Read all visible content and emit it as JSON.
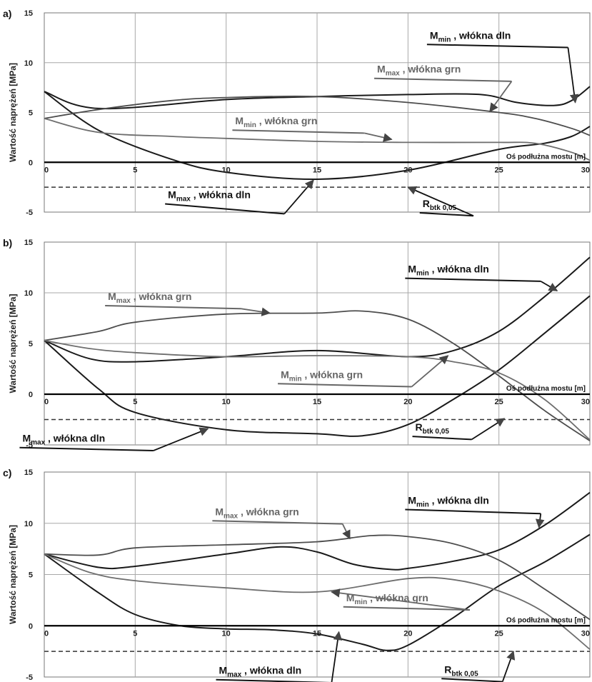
{
  "chart_data": [
    {
      "type": "line",
      "panel_label": "a)",
      "ylabel": "Wartość naprężeń [MPa]",
      "axis_note": "Oś podłużna mostu [m]",
      "xlim": [
        0,
        30
      ],
      "ylim": [
        -5,
        15
      ],
      "xticks": [
        "0",
        "5",
        "10",
        "15",
        "20",
        "25",
        "30"
      ],
      "yticks": [
        "-5",
        "0",
        "5",
        "10",
        "15"
      ],
      "series": [
        {
          "key": "mmax_dln",
          "color": "#1a1a1a",
          "x": [
            0,
            3,
            7,
            10,
            15,
            20,
            25,
            27.5,
            29,
            30
          ],
          "y": [
            7.1,
            3.2,
            0.3,
            -1.0,
            -1.7,
            -0.8,
            1.3,
            1.9,
            2.6,
            3.6
          ]
        },
        {
          "key": "mmin_dln",
          "color": "#1a1a1a",
          "x": [
            0,
            3,
            10,
            15,
            20,
            24,
            26,
            28,
            29,
            30
          ],
          "y": [
            7.1,
            5.4,
            6.3,
            6.6,
            6.8,
            6.8,
            6.0,
            5.7,
            6.2,
            7.6
          ]
        },
        {
          "key": "mmax_grn",
          "color": "#4d4d4d",
          "x": [
            0,
            3,
            7,
            10,
            15,
            20,
            25,
            27,
            29,
            30
          ],
          "y": [
            4.4,
            5.3,
            6.2,
            6.5,
            6.6,
            6.0,
            5.0,
            4.4,
            3.4,
            2.7
          ]
        },
        {
          "key": "mmin_grn",
          "color": "#6e6e6e",
          "x": [
            0,
            3,
            7,
            10,
            15,
            20,
            25,
            27,
            29,
            30
          ],
          "y": [
            4.4,
            3.0,
            2.6,
            2.4,
            2.1,
            2.0,
            2.0,
            1.9,
            1.0,
            0.2
          ]
        },
        {
          "key": "rbtk",
          "color": "#333333",
          "dashed": true,
          "x": [
            0,
            30
          ],
          "y": [
            -2.5,
            -2.5
          ]
        },
        {
          "key": "axis",
          "color": "#000000",
          "x": [
            0,
            30
          ],
          "y": [
            0,
            0
          ]
        }
      ],
      "annotations": [
        {
          "main": "M",
          "sub": "min",
          "rest": " , włókna dln",
          "color": "#111",
          "text_at": [
            21.2,
            12.4
          ],
          "line_end": [
            28.8,
            12.1
          ],
          "arrow_to": [
            29.2,
            6.0
          ]
        },
        {
          "main": "M",
          "sub": "max",
          "rest": " , włókna grn",
          "color": "#666",
          "text_at": [
            18.3,
            9.0
          ],
          "line_end": [
            25.7,
            8.7
          ],
          "arrow_to": [
            24.5,
            5.1
          ]
        },
        {
          "main": "M",
          "sub": "min",
          "rest": " , włókna grn",
          "color": "#666",
          "text_at": [
            10.5,
            3.8
          ],
          "line_end": [
            17.6,
            3.5
          ],
          "arrow_to": [
            19.1,
            2.3
          ]
        },
        {
          "main": "M",
          "sub": "max",
          "rest": " , włókna dln",
          "color": "#111",
          "text_at": [
            6.8,
            -3.6
          ],
          "line_end": [
            13.2,
            -4.6
          ],
          "arrow_to": [
            14.8,
            -1.8
          ]
        },
        {
          "main": "R",
          "sub": "btk 0,05",
          "rest": "",
          "color": "#111",
          "text_at": [
            20.8,
            -4.5
          ],
          "line_end": [
            23.6,
            -4.8
          ],
          "arrow_to": [
            20.0,
            -2.5
          ]
        }
      ]
    },
    {
      "type": "line",
      "panel_label": "b)",
      "ylabel": "Wartość naprężeń [MPa]",
      "axis_note": "Oś podłużna mostu [m]",
      "xlim": [
        0,
        30
      ],
      "ylim": [
        -5,
        15
      ],
      "xticks": [
        "0",
        "5",
        "10",
        "15",
        "20",
        "25",
        "30"
      ],
      "yticks": [
        "-5",
        "0",
        "5",
        "10",
        "15"
      ],
      "series": [
        {
          "key": "mmax_dln",
          "color": "#1a1a1a",
          "x": [
            0,
            3,
            5,
            10,
            15,
            17.5,
            20,
            22.5,
            25,
            27.5,
            30
          ],
          "y": [
            5.3,
            0.5,
            -1.8,
            -3.5,
            -3.9,
            -4.1,
            -3.0,
            -0.5,
            2.4,
            6.0,
            9.7
          ]
        },
        {
          "key": "mmin_dln",
          "color": "#1a1a1a",
          "x": [
            0,
            2.5,
            5,
            10,
            15,
            20,
            22.5,
            25,
            27.5,
            30
          ],
          "y": [
            5.3,
            3.5,
            3.2,
            3.7,
            4.3,
            3.7,
            4.3,
            6.2,
            9.6,
            13.5
          ]
        },
        {
          "key": "mmax_grn",
          "color": "#4d4d4d",
          "x": [
            0,
            3,
            5,
            10,
            15,
            17.5,
            20,
            22.5,
            25,
            27.5,
            30
          ],
          "y": [
            5.3,
            6.2,
            7.1,
            7.9,
            8.0,
            8.2,
            7.4,
            5.0,
            1.8,
            -1.6,
            -4.6
          ]
        },
        {
          "key": "mmin_grn",
          "color": "#6e6e6e",
          "x": [
            0,
            2.5,
            5,
            10,
            15,
            20,
            22.5,
            25,
            27.5,
            30
          ],
          "y": [
            5.3,
            4.5,
            4.1,
            3.7,
            3.8,
            3.7,
            3.2,
            2.1,
            -0.5,
            -4.5
          ]
        },
        {
          "key": "rbtk",
          "color": "#333333",
          "dashed": true,
          "x": [
            0,
            30
          ],
          "y": [
            -2.5,
            -2.5
          ]
        },
        {
          "key": "axis",
          "color": "#000000",
          "x": [
            0,
            30
          ],
          "y": [
            0,
            0
          ]
        }
      ],
      "annotations": [
        {
          "main": "M",
          "sub": "min",
          "rest": " , włókna dln",
          "color": "#111",
          "text_at": [
            20.0,
            12.0
          ],
          "line_end": [
            27.3,
            11.7
          ],
          "arrow_to": [
            28.2,
            10.2
          ]
        },
        {
          "main": "M",
          "sub": "max",
          "rest": " , włókna grn",
          "color": "#666",
          "text_at": [
            3.5,
            9.3
          ],
          "line_end": [
            10.8,
            9.0
          ],
          "arrow_to": [
            12.4,
            8.0
          ]
        },
        {
          "main": "M",
          "sub": "min",
          "rest": " , włókna grn",
          "color": "#666",
          "text_at": [
            13.0,
            1.6
          ],
          "line_end": [
            20.2,
            1.3
          ],
          "arrow_to": [
            22.2,
            3.8
          ]
        },
        {
          "main": "M",
          "sub": "max",
          "rest": " , włókna dln",
          "color": "#111",
          "text_at": [
            -1.2,
            -4.7
          ],
          "line_end": [
            6.0,
            -5.0
          ],
          "arrow_to": [
            9.0,
            -3.4
          ]
        },
        {
          "main": "R",
          "sub": "btk 0,05",
          "rest": "",
          "color": "#111",
          "text_at": [
            20.4,
            -3.6
          ],
          "line_end": [
            23.5,
            -3.9
          ],
          "arrow_to": [
            25.3,
            -2.4
          ]
        }
      ]
    },
    {
      "type": "line",
      "panel_label": "c)",
      "ylabel": "Wartość naprężeń [MPa]",
      "axis_note": "Oś podłużna mostu [m]",
      "xlim": [
        0,
        30
      ],
      "ylim": [
        -5,
        15
      ],
      "xticks": [
        "0",
        "5",
        "10",
        "15",
        "20",
        "25",
        "30"
      ],
      "yticks": [
        "-5",
        "0",
        "5",
        "10",
        "15"
      ],
      "series": [
        {
          "key": "mmax_dln",
          "color": "#1a1a1a",
          "x": [
            0,
            3,
            5,
            7.5,
            10,
            12.5,
            15,
            17.5,
            18.8,
            20,
            22.5,
            25,
            27.5,
            30
          ],
          "y": [
            7.0,
            3.2,
            1.1,
            0.0,
            -0.3,
            -0.4,
            -0.8,
            -1.8,
            -2.4,
            -1.9,
            0.8,
            3.9,
            6.2,
            8.9
          ]
        },
        {
          "key": "mmin_dln",
          "color": "#1a1a1a",
          "x": [
            0,
            3,
            5,
            10,
            13,
            15,
            17,
            19,
            20,
            22.5,
            25,
            27.5,
            30
          ],
          "y": [
            7.0,
            5.7,
            5.8,
            7.0,
            7.7,
            7.2,
            6.0,
            5.5,
            5.6,
            6.3,
            7.4,
            9.8,
            13.0
          ]
        },
        {
          "key": "mmax_grn",
          "color": "#4d4d4d",
          "x": [
            0,
            3,
            5,
            10,
            15,
            18,
            20,
            22.5,
            25,
            27.5,
            30
          ],
          "y": [
            7.0,
            6.9,
            7.6,
            7.9,
            8.2,
            8.8,
            8.7,
            8.0,
            6.4,
            3.6,
            0.6
          ]
        },
        {
          "key": "mmin_grn",
          "color": "#6e6e6e",
          "x": [
            0,
            2.5,
            5,
            10,
            15,
            20,
            22.5,
            25,
            27.5,
            30
          ],
          "y": [
            7.0,
            5.2,
            4.4,
            3.7,
            3.3,
            4.6,
            4.5,
            3.4,
            1.3,
            -2.3
          ]
        },
        {
          "key": "rbtk",
          "color": "#333333",
          "dashed": true,
          "x": [
            0,
            30
          ],
          "y": [
            -2.5,
            -2.5
          ]
        },
        {
          "key": "axis",
          "color": "#000000",
          "x": [
            0,
            30
          ],
          "y": [
            0,
            0
          ]
        }
      ],
      "annotations": [
        {
          "main": "M",
          "sub": "min",
          "rest": " , włókna dln",
          "color": "#111",
          "text_at": [
            20.0,
            11.9
          ],
          "line_end": [
            27.3,
            11.5
          ],
          "arrow_to": [
            27.2,
            9.6
          ]
        },
        {
          "main": "M",
          "sub": "max",
          "rest": " , włókna grn",
          "color": "#666",
          "text_at": [
            9.4,
            10.8
          ],
          "line_end": [
            16.4,
            10.5
          ],
          "arrow_to": [
            16.8,
            8.5
          ]
        },
        {
          "main": "M",
          "sub": "min",
          "rest": " , włókna grn",
          "color": "#666",
          "text_at": [
            16.6,
            2.4
          ],
          "line_end": [
            23.4,
            2.1
          ],
          "arrow_to": [
            15.8,
            3.3
          ]
        },
        {
          "main": "M",
          "sub": "max",
          "rest": " , włókna dln",
          "color": "#111",
          "text_at": [
            9.6,
            -4.7
          ],
          "line_end": [
            15.8,
            -5.0
          ],
          "arrow_to": [
            16.2,
            -0.6
          ]
        },
        {
          "main": "R",
          "sub": "btk 0,05",
          "rest": "",
          "color": "#111",
          "text_at": [
            22.0,
            -4.6
          ],
          "line_end": [
            25.2,
            -4.9
          ],
          "arrow_to": [
            25.8,
            -2.5
          ]
        }
      ]
    }
  ]
}
